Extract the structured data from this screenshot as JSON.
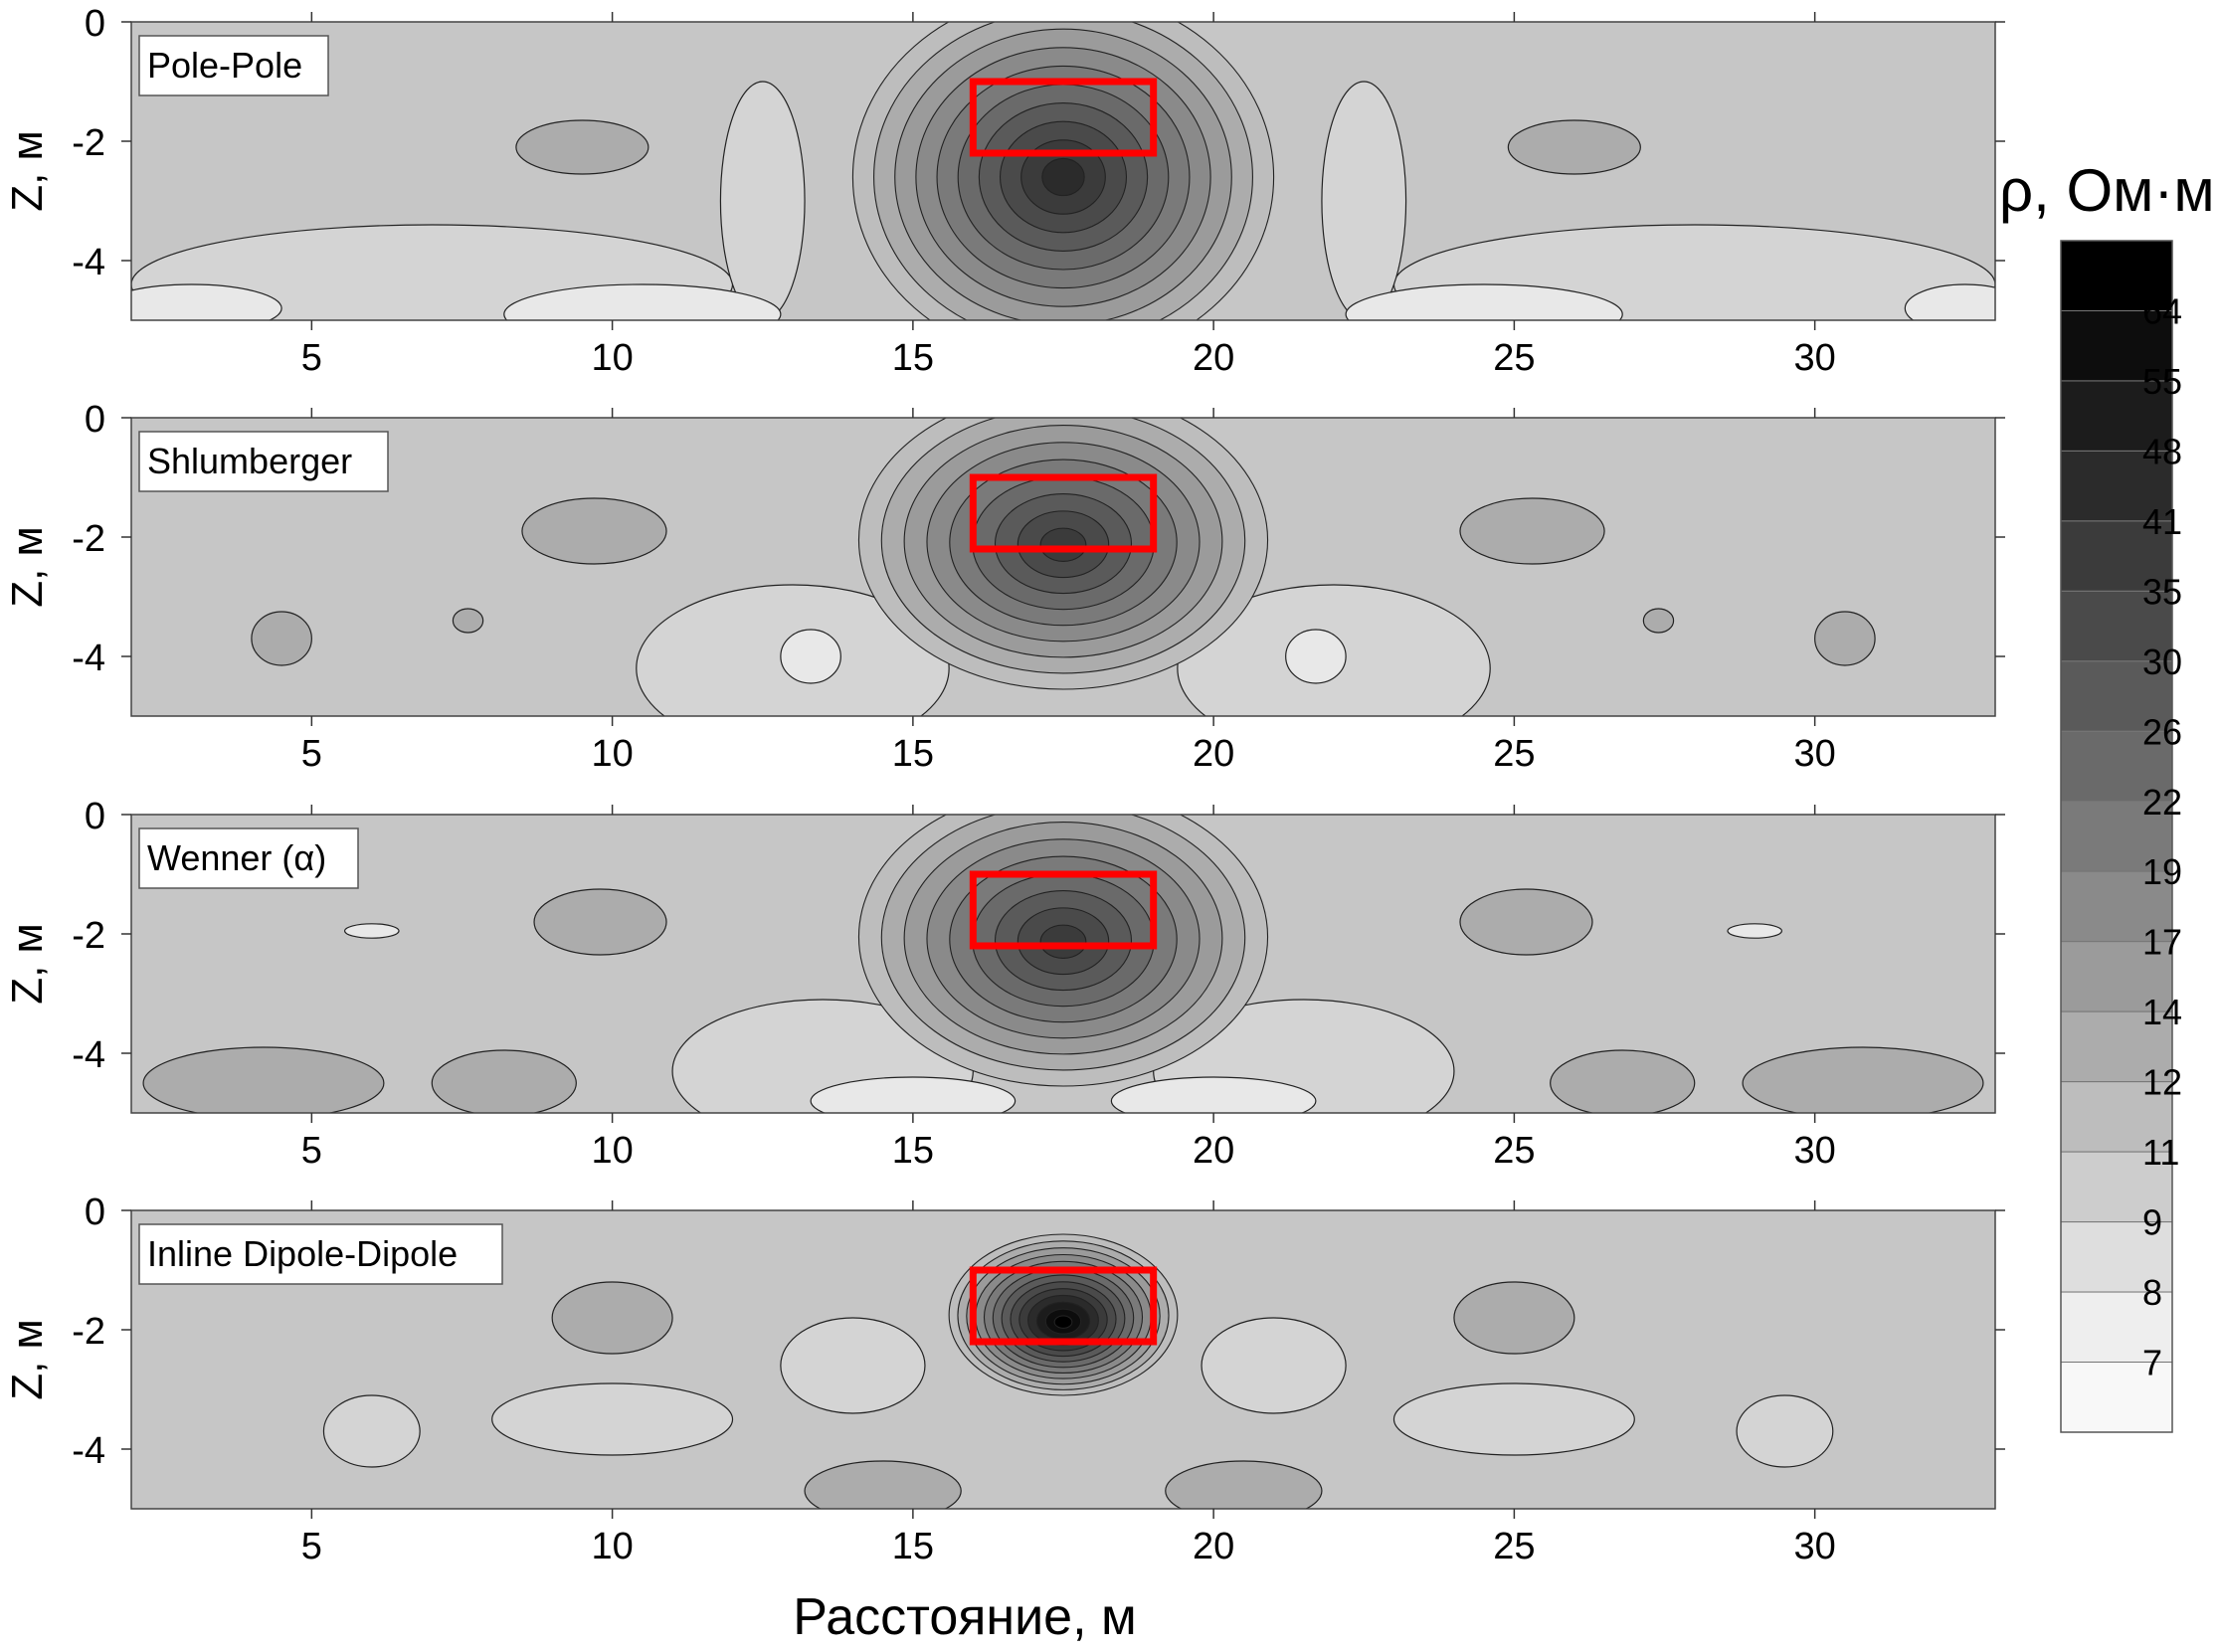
{
  "figure": {
    "xlabel": "Расстояние, м",
    "ylabel": "Z, м",
    "colorbar_title": "ρ, Ом·м"
  },
  "chart_data": {
    "type": "heatmap",
    "subtype": "filled-contour",
    "xlim": [
      2,
      33
    ],
    "ylim": [
      -5,
      0
    ],
    "xticks": [
      5,
      10,
      15,
      20,
      25,
      30
    ],
    "yticks": [
      0,
      -2,
      -4
    ],
    "xlabel": "Расстояние, м",
    "ylabel": "Z, м",
    "colorbar": {
      "title": "ρ, Ом·м",
      "levels": [
        64,
        55,
        48,
        41,
        35,
        30,
        26,
        22,
        19,
        17,
        14,
        12,
        11,
        9,
        8,
        7
      ],
      "colors": [
        "#000000",
        "#0d0d0d",
        "#1c1c1c",
        "#2b2b2b",
        "#3b3b3b",
        "#4a4a4a",
        "#5a5a5a",
        "#6a6a6a",
        "#7a7a7a",
        "#8a8a8a",
        "#9b9b9b",
        "#acacac",
        "#bdbdbd",
        "#cdcdcd",
        "#dedede",
        "#eeeeee",
        "#f8f8f8"
      ]
    },
    "target_box": {
      "x": [
        16,
        19
      ],
      "z": [
        -1,
        -2.2
      ],
      "color": "#ff0000"
    },
    "background_color": "#c6c6c6",
    "panels": [
      {
        "label": "Pole-Pole",
        "center": {
          "x": 17.5,
          "z": -2.6,
          "value": 41
        },
        "blobs": [
          {
            "x": 9.5,
            "z": -2.1,
            "rx": 1.1,
            "rz": 0.45,
            "color": "#acacac"
          },
          {
            "x": 26,
            "z": -2.1,
            "rx": 1.1,
            "rz": 0.45,
            "color": "#acacac"
          },
          {
            "x": 7,
            "z": -4.4,
            "rx": 5,
            "rz": 1.0,
            "color": "#d4d4d4"
          },
          {
            "x": 28,
            "z": -4.4,
            "rx": 5,
            "rz": 1.0,
            "color": "#d4d4d4"
          },
          {
            "x": 12.5,
            "z": -3.0,
            "rx": 0.7,
            "rz": 2.0,
            "color": "#d4d4d4"
          },
          {
            "x": 22.5,
            "z": -3.0,
            "rx": 0.7,
            "rz": 2.0,
            "color": "#d4d4d4"
          },
          {
            "x": 10.5,
            "z": -4.9,
            "rx": 2.3,
            "rz": 0.5,
            "color": "#e8e8e8"
          },
          {
            "x": 24.5,
            "z": -4.9,
            "rx": 2.3,
            "rz": 0.5,
            "color": "#e8e8e8"
          },
          {
            "x": 3,
            "z": -4.8,
            "rx": 1.5,
            "rz": 0.4,
            "color": "#e8e8e8"
          },
          {
            "x": 32.5,
            "z": -4.8,
            "rx": 1.0,
            "rz": 0.4,
            "color": "#e8e8e8"
          }
        ]
      },
      {
        "label": "Shlumberger",
        "center": {
          "x": 17.5,
          "z": -2.05,
          "value": 35
        },
        "blobs": [
          {
            "x": 9.7,
            "z": -1.9,
            "rx": 1.2,
            "rz": 0.55,
            "color": "#acacac"
          },
          {
            "x": 25.3,
            "z": -1.9,
            "rx": 1.2,
            "rz": 0.55,
            "color": "#acacac"
          },
          {
            "x": 13,
            "z": -4.2,
            "rx": 2.6,
            "rz": 1.4,
            "color": "#d4d4d4"
          },
          {
            "x": 22,
            "z": -4.2,
            "rx": 2.6,
            "rz": 1.4,
            "color": "#d4d4d4"
          },
          {
            "x": 13.3,
            "z": -4.0,
            "rx": 0.5,
            "rz": 0.45,
            "color": "#e8e8e8"
          },
          {
            "x": 21.7,
            "z": -4.0,
            "rx": 0.5,
            "rz": 0.45,
            "color": "#e8e8e8"
          },
          {
            "x": 4.5,
            "z": -3.7,
            "rx": 0.5,
            "rz": 0.45,
            "color": "#acacac"
          },
          {
            "x": 30.5,
            "z": -3.7,
            "rx": 0.5,
            "rz": 0.45,
            "color": "#acacac"
          },
          {
            "x": 7.6,
            "z": -3.4,
            "rx": 0.25,
            "rz": 0.2,
            "color": "#acacac"
          },
          {
            "x": 27.4,
            "z": -3.4,
            "rx": 0.25,
            "rz": 0.2,
            "color": "#acacac"
          }
        ]
      },
      {
        "label": "Wenner (α)",
        "center": {
          "x": 17.5,
          "z": -2.05,
          "value": 35
        },
        "blobs": [
          {
            "x": 9.8,
            "z": -1.8,
            "rx": 1.1,
            "rz": 0.55,
            "color": "#acacac"
          },
          {
            "x": 25.2,
            "z": -1.8,
            "rx": 1.1,
            "rz": 0.55,
            "color": "#acacac"
          },
          {
            "x": 13.5,
            "z": -4.3,
            "rx": 2.5,
            "rz": 1.2,
            "color": "#d4d4d4"
          },
          {
            "x": 21.5,
            "z": -4.3,
            "rx": 2.5,
            "rz": 1.2,
            "color": "#d4d4d4"
          },
          {
            "x": 15,
            "z": -4.8,
            "rx": 1.7,
            "rz": 0.4,
            "color": "#e8e8e8"
          },
          {
            "x": 20,
            "z": -4.8,
            "rx": 1.7,
            "rz": 0.4,
            "color": "#e8e8e8"
          },
          {
            "x": 4.2,
            "z": -4.5,
            "rx": 2.0,
            "rz": 0.6,
            "color": "#acacac"
          },
          {
            "x": 30.8,
            "z": -4.5,
            "rx": 2.0,
            "rz": 0.6,
            "color": "#acacac"
          },
          {
            "x": 8.2,
            "z": -4.5,
            "rx": 1.2,
            "rz": 0.55,
            "color": "#acacac"
          },
          {
            "x": 26.8,
            "z": -4.5,
            "rx": 1.2,
            "rz": 0.55,
            "color": "#acacac"
          },
          {
            "x": 6,
            "z": -1.95,
            "rx": 0.45,
            "rz": 0.12,
            "color": "#e8e8e8"
          },
          {
            "x": 29,
            "z": -1.95,
            "rx": 0.45,
            "rz": 0.12,
            "color": "#e8e8e8"
          }
        ]
      },
      {
        "label": "Inline Dipole-Dipole",
        "center": {
          "x": 17.5,
          "z": -1.75,
          "value": 64
        },
        "blobs": [
          {
            "x": 10,
            "z": -1.8,
            "rx": 1.0,
            "rz": 0.6,
            "color": "#acacac"
          },
          {
            "x": 25,
            "z": -1.8,
            "rx": 1.0,
            "rz": 0.6,
            "color": "#acacac"
          },
          {
            "x": 14,
            "z": -2.6,
            "rx": 1.2,
            "rz": 0.8,
            "color": "#d4d4d4"
          },
          {
            "x": 21,
            "z": -2.6,
            "rx": 1.2,
            "rz": 0.8,
            "color": "#d4d4d4"
          },
          {
            "x": 10,
            "z": -3.5,
            "rx": 2.0,
            "rz": 0.6,
            "color": "#d4d4d4"
          },
          {
            "x": 25,
            "z": -3.5,
            "rx": 2.0,
            "rz": 0.6,
            "color": "#d4d4d4"
          },
          {
            "x": 6,
            "z": -3.7,
            "rx": 0.8,
            "rz": 0.6,
            "color": "#d4d4d4"
          },
          {
            "x": 29.5,
            "z": -3.7,
            "rx": 0.8,
            "rz": 0.6,
            "color": "#d4d4d4"
          },
          {
            "x": 14.5,
            "z": -4.7,
            "rx": 1.3,
            "rz": 0.5,
            "color": "#acacac"
          },
          {
            "x": 20.5,
            "z": -4.7,
            "rx": 1.3,
            "rz": 0.5,
            "color": "#acacac"
          }
        ]
      }
    ]
  }
}
